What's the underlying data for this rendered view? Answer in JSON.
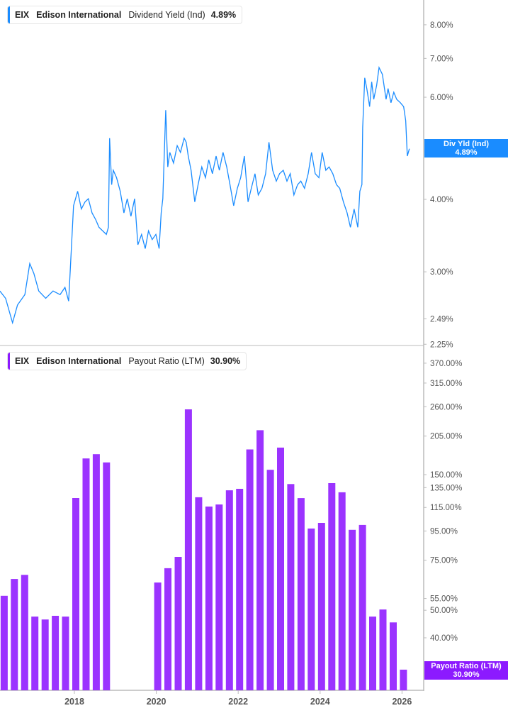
{
  "colors": {
    "yield_line": "#1a8cff",
    "payout_bar": "#9b33ff",
    "payout_tag": "#8c1aff"
  },
  "top_legend": {
    "ticker": "EIX",
    "company": "Edison International",
    "metric": "Dividend Yield (Ind)",
    "value": "4.89%"
  },
  "bottom_legend": {
    "ticker": "EIX",
    "company": "Edison International",
    "metric": "Payout Ratio (LTM)",
    "value": "30.90%"
  },
  "top_tag": {
    "label": "Div Yld (Ind)",
    "value": "4.89%"
  },
  "bottom_tag": {
    "label": "Payout Ratio (LTM)",
    "value": "30.90%"
  },
  "chart_data": [
    {
      "type": "line",
      "series": [
        {
          "name": "Div Yld (Ind)",
          "points": [
            [
              2016.18,
              2.78
            ],
            [
              2016.32,
              2.7
            ],
            [
              2016.49,
              2.45
            ],
            [
              2016.61,
              2.63
            ],
            [
              2016.79,
              2.74
            ],
            [
              2016.91,
              3.1
            ],
            [
              2017.01,
              2.98
            ],
            [
              2017.13,
              2.78
            ],
            [
              2017.3,
              2.7
            ],
            [
              2017.48,
              2.78
            ],
            [
              2017.65,
              2.74
            ],
            [
              2017.77,
              2.82
            ],
            [
              2017.86,
              2.67
            ],
            [
              2017.93,
              3.34
            ],
            [
              2017.98,
              3.9
            ],
            [
              2018.08,
              4.13
            ],
            [
              2018.17,
              3.85
            ],
            [
              2018.26,
              3.96
            ],
            [
              2018.34,
              4.01
            ],
            [
              2018.43,
              3.79
            ],
            [
              2018.52,
              3.69
            ],
            [
              2018.6,
              3.58
            ],
            [
              2018.69,
              3.53
            ],
            [
              2018.78,
              3.48
            ],
            [
              2018.83,
              3.58
            ],
            [
              2018.86,
              5.1
            ],
            [
              2018.91,
              4.24
            ],
            [
              2018.95,
              4.49
            ],
            [
              2019.03,
              4.36
            ],
            [
              2019.12,
              4.13
            ],
            [
              2019.21,
              3.79
            ],
            [
              2019.29,
              4.01
            ],
            [
              2019.38,
              3.74
            ],
            [
              2019.47,
              4.01
            ],
            [
              2019.55,
              3.34
            ],
            [
              2019.64,
              3.48
            ],
            [
              2019.73,
              3.29
            ],
            [
              2019.81,
              3.53
            ],
            [
              2019.9,
              3.41
            ],
            [
              2019.99,
              3.48
            ],
            [
              2020.07,
              3.29
            ],
            [
              2020.12,
              3.79
            ],
            [
              2020.16,
              4.01
            ],
            [
              2020.23,
              5.7
            ],
            [
              2020.28,
              4.55
            ],
            [
              2020.33,
              4.82
            ],
            [
              2020.42,
              4.62
            ],
            [
              2020.51,
              4.95
            ],
            [
              2020.59,
              4.82
            ],
            [
              2020.68,
              5.1
            ],
            [
              2020.73,
              5.02
            ],
            [
              2020.78,
              4.75
            ],
            [
              2020.85,
              4.49
            ],
            [
              2020.94,
              3.96
            ],
            [
              2021.02,
              4.24
            ],
            [
              2021.11,
              4.55
            ],
            [
              2021.2,
              4.36
            ],
            [
              2021.28,
              4.68
            ],
            [
              2021.37,
              4.43
            ],
            [
              2021.46,
              4.75
            ],
            [
              2021.54,
              4.49
            ],
            [
              2021.63,
              4.82
            ],
            [
              2021.72,
              4.55
            ],
            [
              2021.8,
              4.24
            ],
            [
              2021.89,
              3.9
            ],
            [
              2021.98,
              4.18
            ],
            [
              2022.06,
              4.36
            ],
            [
              2022.15,
              4.75
            ],
            [
              2022.24,
              3.96
            ],
            [
              2022.32,
              4.18
            ],
            [
              2022.41,
              4.43
            ],
            [
              2022.49,
              4.07
            ],
            [
              2022.58,
              4.18
            ],
            [
              2022.67,
              4.43
            ],
            [
              2022.75,
              5.02
            ],
            [
              2022.84,
              4.49
            ],
            [
              2022.93,
              4.3
            ],
            [
              2023.01,
              4.43
            ],
            [
              2023.1,
              4.49
            ],
            [
              2023.19,
              4.3
            ],
            [
              2023.27,
              4.43
            ],
            [
              2023.36,
              4.07
            ],
            [
              2023.45,
              4.24
            ],
            [
              2023.53,
              4.3
            ],
            [
              2023.62,
              4.18
            ],
            [
              2023.71,
              4.43
            ],
            [
              2023.79,
              4.82
            ],
            [
              2023.88,
              4.43
            ],
            [
              2023.97,
              4.36
            ],
            [
              2024.05,
              4.82
            ],
            [
              2024.14,
              4.49
            ],
            [
              2024.22,
              4.55
            ],
            [
              2024.31,
              4.43
            ],
            [
              2024.4,
              4.24
            ],
            [
              2024.48,
              4.18
            ],
            [
              2024.57,
              3.96
            ],
            [
              2024.66,
              3.79
            ],
            [
              2024.74,
              3.58
            ],
            [
              2024.83,
              3.85
            ],
            [
              2024.92,
              3.58
            ],
            [
              2024.97,
              4.13
            ],
            [
              2025.02,
              4.24
            ],
            [
              2025.04,
              5.32
            ],
            [
              2025.09,
              6.48
            ],
            [
              2025.14,
              6.21
            ],
            [
              2025.21,
              5.78
            ],
            [
              2025.26,
              6.38
            ],
            [
              2025.31,
              5.95
            ],
            [
              2025.38,
              6.29
            ],
            [
              2025.44,
              6.75
            ],
            [
              2025.52,
              6.57
            ],
            [
              2025.61,
              5.95
            ],
            [
              2025.66,
              6.21
            ],
            [
              2025.73,
              5.87
            ],
            [
              2025.8,
              6.12
            ],
            [
              2025.87,
              5.95
            ],
            [
              2025.96,
              5.87
            ],
            [
              2026.04,
              5.78
            ],
            [
              2026.09,
              5.47
            ],
            [
              2026.13,
              4.75
            ],
            [
              2026.18,
              4.89
            ]
          ]
        }
      ],
      "yscale": "log",
      "ylim": [
        2.25,
        9.2
      ],
      "y_ticks": [
        "8.00%",
        "7.00%",
        "6.00%",
        "5.00%",
        "4.00%",
        "3.00%",
        "2.49%",
        "2.25%"
      ],
      "y_tick_values": [
        8,
        7,
        6,
        5,
        4,
        3,
        2.49,
        2.25
      ],
      "grid": false
    },
    {
      "type": "bar",
      "categories": [
        "2016-03",
        "2016-06",
        "2016-09",
        "2016-12",
        "2017-03",
        "2017-06",
        "2017-09",
        "2017-12",
        "2018-03",
        "2018-06",
        "2018-09",
        "2019-12",
        "2020-03",
        "2020-06",
        "2020-09",
        "2020-12",
        "2021-03",
        "2021-06",
        "2021-09",
        "2021-12",
        "2022-03",
        "2022-06",
        "2022-09",
        "2022-12",
        "2023-03",
        "2023-06",
        "2023-09",
        "2023-12",
        "2024-03",
        "2024-06",
        "2024-09",
        "2024-12",
        "2025-03",
        "2025-06",
        "2025-09",
        "2025-12"
      ],
      "series": [
        {
          "name": "Payout Ratio (LTM)",
          "values": [
            56.2,
            64.4,
            66.6,
            47.5,
            46.4,
            47.8,
            47.5,
            124.1,
            171,
            177,
            165.6,
            62.6,
            70.3,
            77,
            254.6,
            124.9,
            115.8,
            117.8,
            132.1,
            133.7,
            184,
            215,
            156,
            186.7,
            139,
            124,
            96.9,
            101.5,
            140,
            130,
            95.9,
            99.8,
            47.5,
            50.3,
            45.3,
            30.9
          ]
        }
      ],
      "yscale": "log",
      "ylim": [
        26,
        420
      ],
      "y_ticks": [
        "370.00%",
        "315.00%",
        "260.00%",
        "205.00%",
        "150.00%",
        "135.00%",
        "115.00%",
        "95.00%",
        "75.00%",
        "55.00%",
        "50.00%",
        "40.00%"
      ],
      "y_tick_values": [
        370,
        315,
        260,
        205,
        150,
        135,
        115,
        95,
        75,
        55,
        50,
        40
      ],
      "x_ticks": [
        "2018",
        "2020",
        "2022",
        "2024",
        "2026"
      ],
      "grid": false
    }
  ]
}
